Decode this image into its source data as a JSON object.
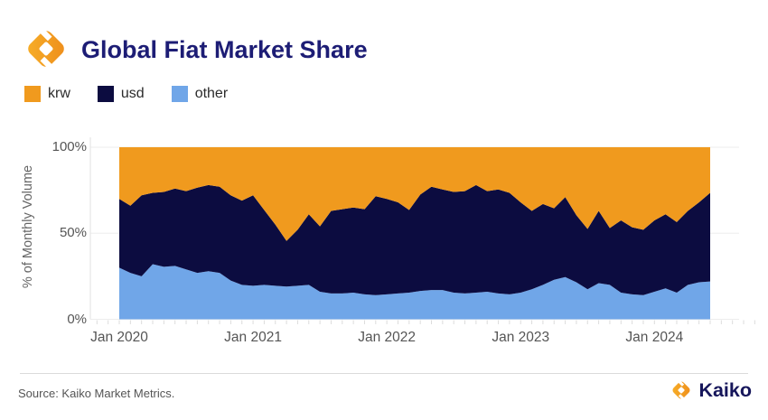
{
  "header": {
    "title": "Global Fiat Market Share"
  },
  "legend": [
    {
      "label": "krw",
      "color": "#F09A1E"
    },
    {
      "label": "usd",
      "color": "#0C0C40"
    },
    {
      "label": "other",
      "color": "#70A6E8"
    }
  ],
  "chart_data": {
    "type": "area",
    "stacked": true,
    "title": "Global Fiat Market Share",
    "ylabel": "% of Monthly Volume",
    "ylim": [
      0,
      100
    ],
    "y_ticks": [
      "0%",
      "50%",
      "100%"
    ],
    "y_tick_values": [
      0,
      50,
      100
    ],
    "x_tick_labels": [
      "Jan 2020",
      "Jan 2021",
      "Jan 2022",
      "Jan 2023",
      "Jan 2024"
    ],
    "x_tick_month_indices": [
      0,
      12,
      24,
      36,
      48
    ],
    "legend_position": "top-left",
    "grid": "horizontal",
    "months": [
      "2020-01",
      "2020-02",
      "2020-03",
      "2020-04",
      "2020-05",
      "2020-06",
      "2020-07",
      "2020-08",
      "2020-09",
      "2020-10",
      "2020-11",
      "2020-12",
      "2021-01",
      "2021-02",
      "2021-03",
      "2021-04",
      "2021-05",
      "2021-06",
      "2021-07",
      "2021-08",
      "2021-09",
      "2021-10",
      "2021-11",
      "2021-12",
      "2022-01",
      "2022-02",
      "2022-03",
      "2022-04",
      "2022-05",
      "2022-06",
      "2022-07",
      "2022-08",
      "2022-09",
      "2022-10",
      "2022-11",
      "2022-12",
      "2023-01",
      "2023-02",
      "2023-03",
      "2023-04",
      "2023-05",
      "2023-06",
      "2023-07",
      "2023-08",
      "2023-09",
      "2023-10",
      "2023-11",
      "2023-12",
      "2024-01",
      "2024-02",
      "2024-03",
      "2024-04",
      "2024-05",
      "2024-06"
    ],
    "series": [
      {
        "name": "other",
        "color": "#70A6E8",
        "values": [
          30,
          27,
          25,
          32,
          30.5,
          31,
          29,
          27,
          28,
          27,
          22.5,
          20,
          19.5,
          20,
          19.5,
          19,
          19.5,
          20,
          16,
          15,
          15,
          15.5,
          14.5,
          14,
          14.5,
          15,
          15.5,
          16.5,
          17,
          17,
          15.5,
          15,
          15.5,
          16,
          15,
          14.5,
          15.5,
          17.5,
          20,
          23,
          24.5,
          21.5,
          17.5,
          21,
          20,
          15.5,
          14.5,
          14,
          16,
          18,
          15.5,
          20,
          21.5,
          22
        ]
      },
      {
        "name": "usd",
        "color": "#0C0C40",
        "values": [
          40,
          39,
          47,
          41.5,
          43.5,
          45,
          45.5,
          49.5,
          50,
          50,
          49.5,
          49,
          52.5,
          43.5,
          35.5,
          26.5,
          32.5,
          41,
          38,
          48,
          49,
          49.5,
          49.5,
          57.5,
          55.5,
          53,
          48,
          56,
          60,
          58.5,
          58.5,
          59.5,
          62.5,
          58.5,
          60.5,
          59,
          52.5,
          45.5,
          47,
          41.5,
          46.5,
          39,
          35,
          42,
          33,
          42,
          39,
          38,
          41.5,
          43,
          41,
          43,
          46.5,
          51.5
        ]
      },
      {
        "name": "krw",
        "color": "#F09A1E",
        "values": [
          30,
          34,
          28,
          26.5,
          26,
          24,
          25.5,
          23.5,
          22,
          23,
          28,
          31,
          28,
          36.5,
          45,
          54.5,
          48,
          39,
          46,
          37,
          36,
          35,
          36,
          28.5,
          30,
          32,
          36.5,
          27.5,
          23,
          24.5,
          26,
          25.5,
          22,
          25.5,
          24.5,
          26.5,
          32,
          37,
          33,
          35.5,
          29,
          39.5,
          47.5,
          37,
          47,
          42.5,
          46.5,
          48,
          42.5,
          39,
          43.5,
          37,
          32,
          26.5
        ]
      }
    ]
  },
  "footer": {
    "source": "Source: Kaiko Market Metrics.",
    "brand": "Kaiko"
  }
}
